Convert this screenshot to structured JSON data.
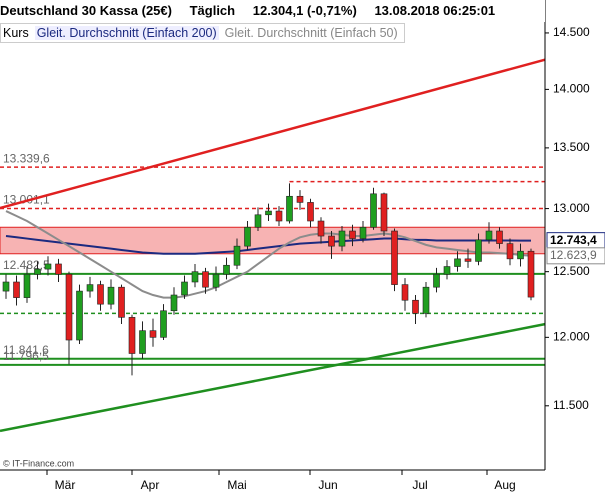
{
  "chart_data": {
    "type": "candlestick",
    "title": "Deutschland 30 Kassa (25€)",
    "interval": "Täglich",
    "last": "12.304,1 (-0,71%)",
    "timestamp": "13.08.2018 06:25:01",
    "legend": [
      "Kurs",
      "Gleit. Durchschnitt (Einfach 200)",
      "Gleit. Durchschnitt (Einfach 50)"
    ],
    "source": "© IT-Finance.com",
    "months": [
      "Mär",
      "Apr",
      "Mai",
      "Jun",
      "Jul",
      "Aug"
    ],
    "log_scale": true,
    "ylim": [
      11050,
      14800
    ],
    "yticks": [
      {
        "value": 11500,
        "label": "11.500"
      },
      {
        "value": 12000,
        "label": "12.000"
      },
      {
        "value": 12500,
        "label": "12.500"
      },
      {
        "value": 13000,
        "label": "13.000"
      },
      {
        "value": 13500,
        "label": "13.500"
      },
      {
        "value": 14000,
        "label": "14.000"
      },
      {
        "value": 14500,
        "label": "14.500"
      }
    ],
    "up_color": "#1f9e1f",
    "down_color": "#e02020",
    "open": [
      12350,
      12420,
      12300,
      12480,
      12520,
      12560,
      12480,
      11980,
      12350,
      12400,
      12250,
      12380,
      12150,
      11880,
      12050,
      12000,
      12200,
      12320,
      12420,
      12500,
      12380,
      12480,
      12550,
      12700,
      12850,
      12950,
      12980,
      12900,
      13100,
      13050,
      12900,
      12780,
      12700,
      12820,
      12760,
      12850,
      13120,
      12820,
      12400,
      12280,
      12180,
      12380,
      12480,
      12540,
      12600,
      12580,
      12750,
      12820,
      12720,
      12600,
      12660
    ],
    "high": [
      12480,
      12470,
      12540,
      12580,
      12620,
      12600,
      12500,
      12400,
      12460,
      12430,
      12440,
      12400,
      12170,
      12120,
      12140,
      12250,
      12380,
      12470,
      12560,
      12530,
      12540,
      12610,
      12760,
      12900,
      13010,
      13040,
      13020,
      13205,
      13150,
      13080,
      12930,
      12820,
      12860,
      12870,
      12900,
      13170,
      13130,
      12840,
      12450,
      12320,
      12420,
      12530,
      12590,
      12660,
      12680,
      12800,
      12890,
      12850,
      12760,
      12720,
      12680
    ],
    "low": [
      12290,
      12240,
      12260,
      12440,
      12470,
      12420,
      11800,
      11950,
      12300,
      12200,
      12210,
      12100,
      11720,
      11840,
      11930,
      11980,
      12170,
      12290,
      12380,
      12330,
      12350,
      12440,
      12520,
      12670,
      12820,
      12900,
      12860,
      12880,
      12990,
      12850,
      12720,
      12600,
      12660,
      12700,
      12730,
      12830,
      12780,
      12350,
      12200,
      12100,
      12150,
      12340,
      12440,
      12500,
      12530,
      12550,
      12720,
      12680,
      12550,
      12540,
      12280
    ],
    "close": [
      12420,
      12300,
      12480,
      12520,
      12560,
      12480,
      11980,
      12350,
      12400,
      12250,
      12380,
      12150,
      11880,
      12050,
      12000,
      12200,
      12320,
      12420,
      12500,
      12380,
      12480,
      12550,
      12700,
      12850,
      12950,
      12980,
      12900,
      13100,
      13050,
      12900,
      12780,
      12700,
      12820,
      12760,
      12850,
      13120,
      12820,
      12400,
      12280,
      12180,
      12380,
      12480,
      12540,
      12600,
      12580,
      12750,
      12820,
      12720,
      12600,
      12660,
      12304
    ],
    "series": [
      {
        "name": "Gleit. Durchschnitt (Einfach 200)",
        "color": "#1c2a80",
        "last_label": "12.743,4",
        "values": [
          12780,
          12770,
          12760,
          12750,
          12740,
          12730,
          12720,
          12710,
          12700,
          12690,
          12680,
          12670,
          12660,
          12650,
          12645,
          12640,
          12640,
          12640,
          12640,
          12645,
          12650,
          12655,
          12660,
          12670,
          12680,
          12690,
          12700,
          12710,
          12720,
          12725,
          12730,
          12735,
          12740,
          12745,
          12750,
          12755,
          12760,
          12760,
          12755,
          12750,
          12750,
          12745,
          12745,
          12745,
          12745,
          12745,
          12745,
          12745,
          12745,
          12744,
          12743.4
        ]
      },
      {
        "name": "Gleit. Durchschnitt (Einfach 50)",
        "color": "#8c8c8c",
        "last_label": "12.623,9",
        "values": [
          12980,
          12940,
          12900,
          12850,
          12800,
          12750,
          12700,
          12650,
          12600,
          12550,
          12500,
          12450,
          12400,
          12350,
          12320,
          12300,
          12300,
          12310,
          12330,
          12350,
          12380,
          12420,
          12460,
          12500,
          12560,
          12620,
          12680,
          12730,
          12770,
          12790,
          12800,
          12800,
          12790,
          12780,
          12780,
          12790,
          12800,
          12790,
          12770,
          12740,
          12710,
          12690,
          12680,
          12670,
          12660,
          12650,
          12650,
          12645,
          12640,
          12630,
          12623.9
        ]
      }
    ],
    "band": {
      "range": [
        12640,
        12850
      ],
      "color": "#f7b3b3",
      "edge": "#e02020"
    },
    "levels": [
      {
        "value": 13339.6,
        "label": "13.339,6",
        "color": "#e02020",
        "dashed": true
      },
      {
        "value": 13220,
        "color": "#e02020",
        "dashed": true,
        "from": 27
      },
      {
        "value": 13001.1,
        "label": "13.001,1",
        "color": "#e02020",
        "dashed": true
      },
      {
        "value": 12482.5,
        "label": "12.482,5",
        "color": "#1f8f1f",
        "dashed": false
      },
      {
        "value": 12180,
        "color": "#1f8f1f",
        "dashed": true
      },
      {
        "value": 11841.6,
        "label": "11.841,6",
        "color": "#1f8f1f",
        "dashed": false
      },
      {
        "value": 11796.5,
        "label": "11.796,5",
        "color": "#1f8f1f",
        "dashed": false
      }
    ],
    "trendlines": [
      {
        "color": "#e02020",
        "values": [
          13004,
          14261
        ]
      },
      {
        "color": "#1f8f1f",
        "values": [
          11322,
          12099
        ]
      }
    ]
  }
}
